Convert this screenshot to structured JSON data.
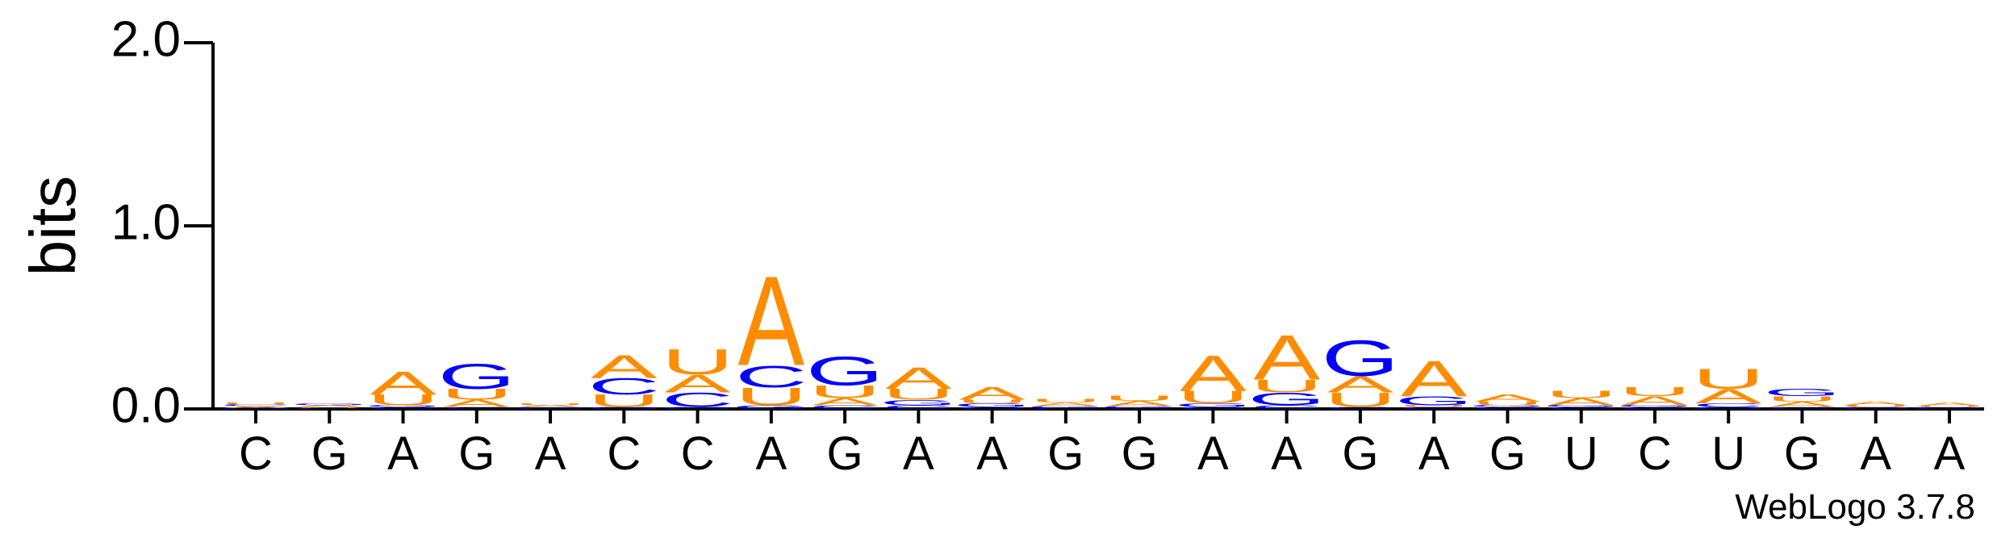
{
  "chart_data": {
    "type": "logo",
    "y_label": "bits",
    "footer": "WebLogo 3.7.8",
    "categories": [
      "C",
      "G",
      "A",
      "G",
      "A",
      "C",
      "C",
      "A",
      "G",
      "A",
      "A",
      "G",
      "G",
      "A",
      "A",
      "G",
      "A",
      "G",
      "U",
      "C",
      "U",
      "G",
      "A",
      "A"
    ],
    "series": [
      {
        "name": "A",
        "color": "#ff8c00",
        "values": [
          0.01,
          0.01,
          0.13,
          0.04,
          0.01,
          0.13,
          0.1,
          0.5,
          0.04,
          0.12,
          0.07,
          0.02,
          0.03,
          0.2,
          0.25,
          0.09,
          0.2,
          0.04,
          0.04,
          0.05,
          0.08,
          0.03,
          0.02,
          0.02
        ]
      },
      {
        "name": "C",
        "color": "#0000ff",
        "values": [
          0.01,
          0.005,
          0.01,
          0.01,
          0.005,
          0.09,
          0.08,
          0.12,
          0.02,
          0.02,
          0.01,
          0.005,
          0.005,
          0.01,
          0.02,
          0.01,
          0.01,
          0.01,
          0.01,
          0.01,
          0.02,
          0.01,
          0.005,
          0.005
        ]
      },
      {
        "name": "G",
        "color": "#0000ff",
        "values": [
          0.005,
          0.01,
          0.01,
          0.14,
          0.005,
          0.01,
          0.01,
          0.02,
          0.16,
          0.03,
          0.02,
          0.01,
          0.01,
          0.02,
          0.07,
          0.2,
          0.05,
          0.01,
          0.01,
          0.01,
          0.01,
          0.04,
          0.005,
          0.005
        ]
      },
      {
        "name": "U",
        "color": "#ff8c00",
        "values": [
          0.01,
          0.005,
          0.06,
          0.06,
          0.01,
          0.07,
          0.14,
          0.1,
          0.07,
          0.06,
          0.02,
          0.02,
          0.03,
          0.07,
          0.07,
          0.08,
          0.01,
          0.02,
          0.04,
          0.05,
          0.11,
          0.03,
          0.01,
          0.005
        ]
      }
    ],
    "ylim": [
      0,
      2
    ],
    "yticks": [
      {
        "value": 0,
        "label": "0.0"
      },
      {
        "value": 1,
        "label": "1.0"
      },
      {
        "value": 2,
        "label": "2.0"
      }
    ]
  }
}
